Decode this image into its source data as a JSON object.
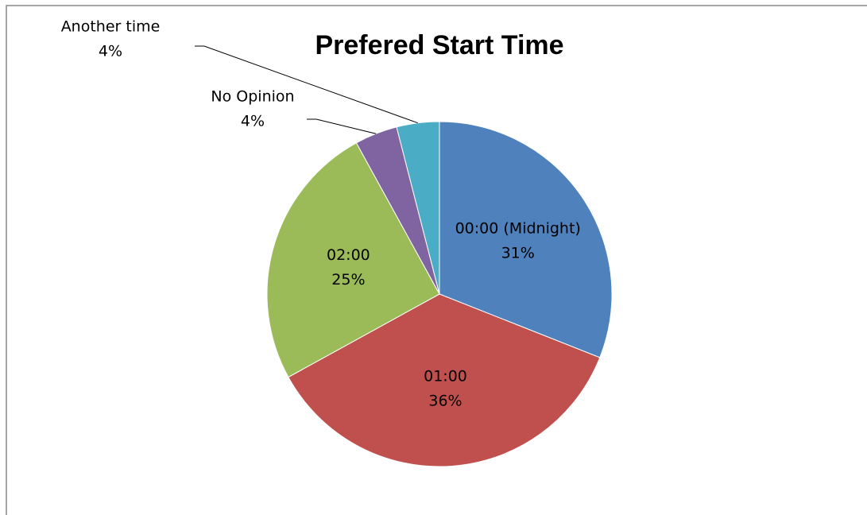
{
  "chart_data": {
    "type": "pie",
    "title": "Prefered Start Time",
    "categories": [
      "00:00 (Midnight)",
      "01:00",
      "02:00",
      "No Opinion",
      "Another time"
    ],
    "values": [
      31,
      36,
      25,
      4,
      4
    ],
    "value_labels": [
      "31%",
      "36%",
      "25%",
      "4%",
      "4%"
    ],
    "colors": [
      "#4f81bd",
      "#c0504d",
      "#9bbb59",
      "#8064a2",
      "#4bacc6"
    ]
  }
}
